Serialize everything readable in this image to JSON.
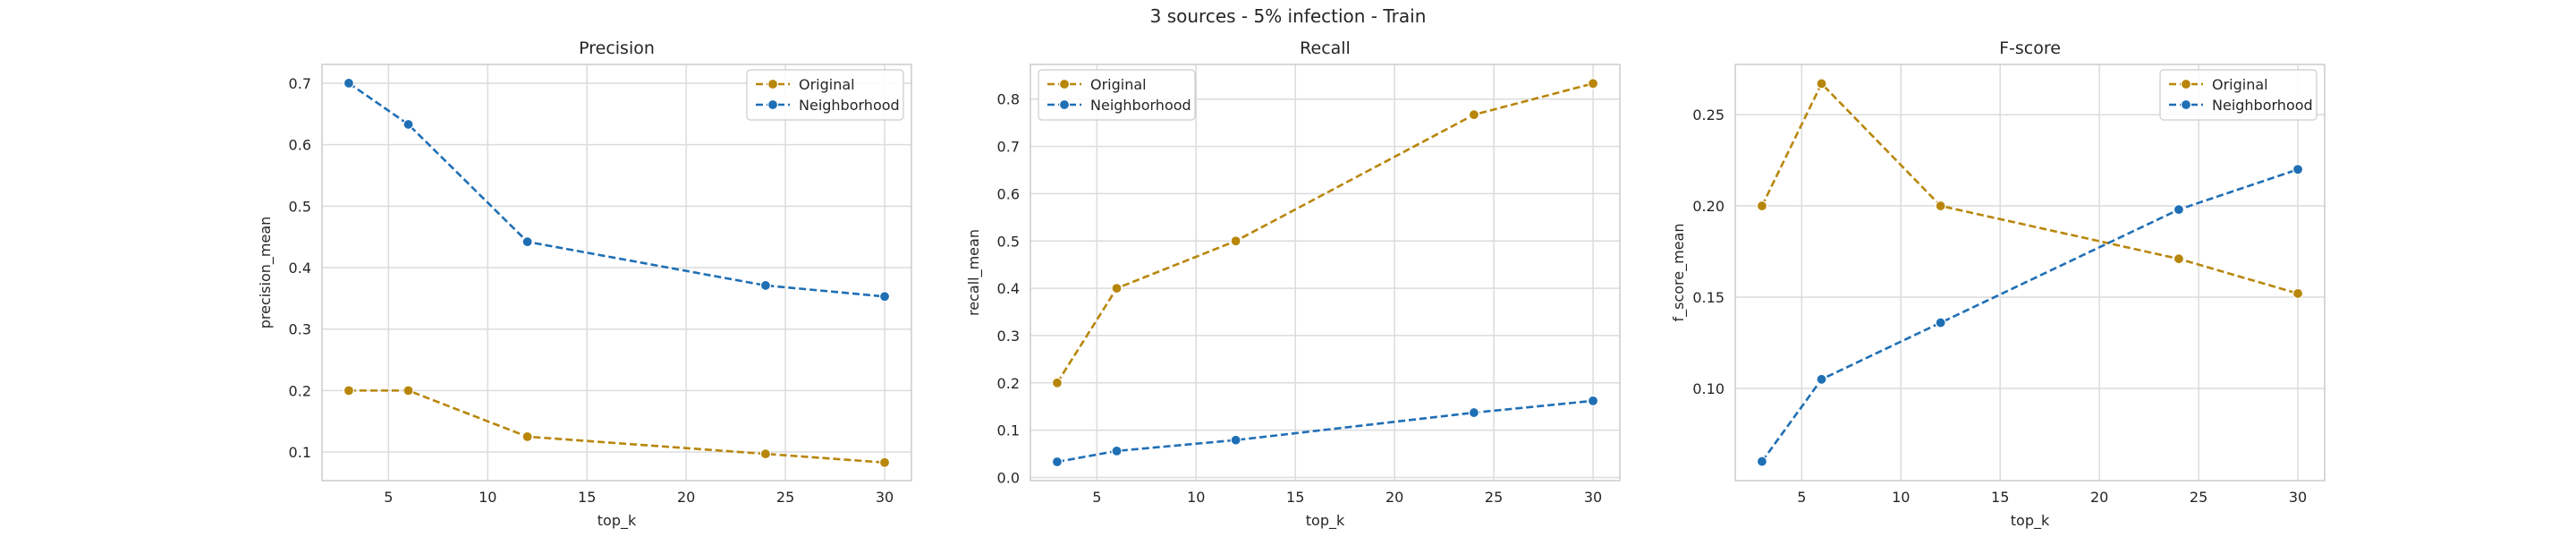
{
  "suptitle": "3 sources - 5% infection - Train",
  "colors": {
    "original": "#b8860b",
    "neighborhood": "#1f6fb5"
  },
  "chart_data": [
    {
      "type": "line",
      "title": "Precision",
      "xlabel": "top_k",
      "ylabel": "precision_mean",
      "x": [
        3,
        6,
        12,
        24,
        30
      ],
      "xticks": [
        5,
        10,
        15,
        20,
        25,
        30
      ],
      "yticks": [
        0.1,
        0.2,
        0.3,
        0.4,
        0.5,
        0.6,
        0.7
      ],
      "xlim": [
        1.65,
        31.35
      ],
      "ylim": [
        0.0535,
        0.7305
      ],
      "legend": "top-right",
      "grid": true,
      "series": [
        {
          "name": "Original",
          "color": "original",
          "values": [
            0.2,
            0.2,
            0.125,
            0.097,
            0.083
          ]
        },
        {
          "name": "Neighborhood",
          "color": "neighborhood",
          "values": [
            0.7,
            0.633,
            0.442,
            0.371,
            0.353
          ]
        }
      ]
    },
    {
      "type": "line",
      "title": "Recall",
      "xlabel": "top_k",
      "ylabel": "recall_mean",
      "x": [
        3,
        6,
        12,
        24,
        30
      ],
      "xticks": [
        5,
        10,
        15,
        20,
        25,
        30
      ],
      "yticks": [
        0.0,
        0.1,
        0.2,
        0.3,
        0.4,
        0.5,
        0.6,
        0.7,
        0.8
      ],
      "xlim": [
        1.65,
        31.35
      ],
      "ylim": [
        -0.0067,
        0.8733
      ],
      "legend": "top-left",
      "grid": true,
      "series": [
        {
          "name": "Original",
          "color": "original",
          "values": [
            0.2,
            0.4,
            0.5,
            0.767,
            0.833
          ]
        },
        {
          "name": "Neighborhood",
          "color": "neighborhood",
          "values": [
            0.033,
            0.056,
            0.079,
            0.137,
            0.162
          ]
        }
      ]
    },
    {
      "type": "line",
      "title": "F-score",
      "xlabel": "top_k",
      "ylabel": "f_score_mean",
      "x": [
        3,
        6,
        12,
        24,
        30
      ],
      "xticks": [
        5,
        10,
        15,
        20,
        25,
        30
      ],
      "yticks": [
        0.1,
        0.15,
        0.2,
        0.25
      ],
      "yticklabels": [
        "0.10",
        "0.15",
        "0.20",
        "0.25"
      ],
      "xlim": [
        1.65,
        31.35
      ],
      "ylim": [
        0.0495,
        0.2775
      ],
      "legend": "top-right",
      "grid": true,
      "series": [
        {
          "name": "Original",
          "color": "original",
          "values": [
            0.2,
            0.267,
            0.2,
            0.171,
            0.152
          ]
        },
        {
          "name": "Neighborhood",
          "color": "neighborhood",
          "values": [
            0.06,
            0.105,
            0.136,
            0.198,
            0.22
          ]
        }
      ]
    }
  ]
}
